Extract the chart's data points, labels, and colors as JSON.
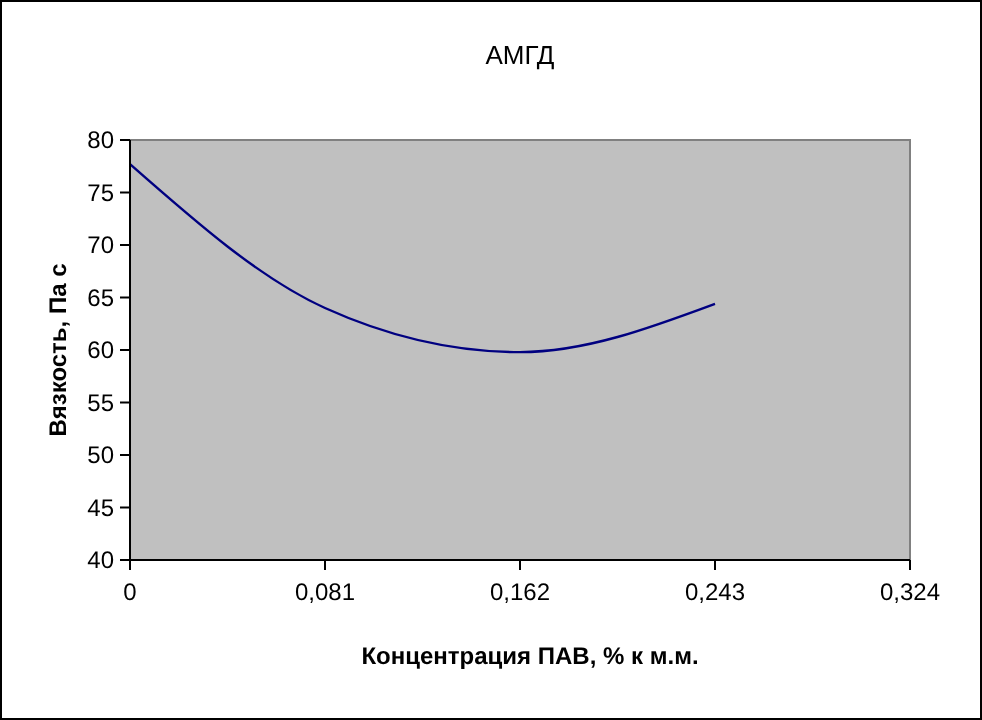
{
  "chart_data": {
    "type": "line",
    "title": "АМГД",
    "xlabel": "Концентрация ПАВ, % к м.м.",
    "ylabel": "Вязкость, Па с",
    "x": [
      0,
      0.081,
      0.162,
      0.243
    ],
    "series": [
      {
        "color": "#000080",
        "values": [
          77.7,
          64,
          59.8,
          64.4
        ]
      }
    ],
    "xlim": [
      0,
      0.324
    ],
    "xticks": [
      0,
      {
        "value": 0.081,
        "label": "0,081"
      },
      {
        "value": 0.162,
        "label": "0,162"
      },
      {
        "value": 0.243,
        "label": "0,243"
      },
      {
        "value": 0.324,
        "label": "0,324"
      }
    ],
    "ylim": [
      40,
      80
    ],
    "yticks": [
      40,
      45,
      50,
      55,
      60,
      65,
      70,
      75,
      80
    ],
    "grid": false,
    "marker": "none",
    "line_style": "solid"
  }
}
